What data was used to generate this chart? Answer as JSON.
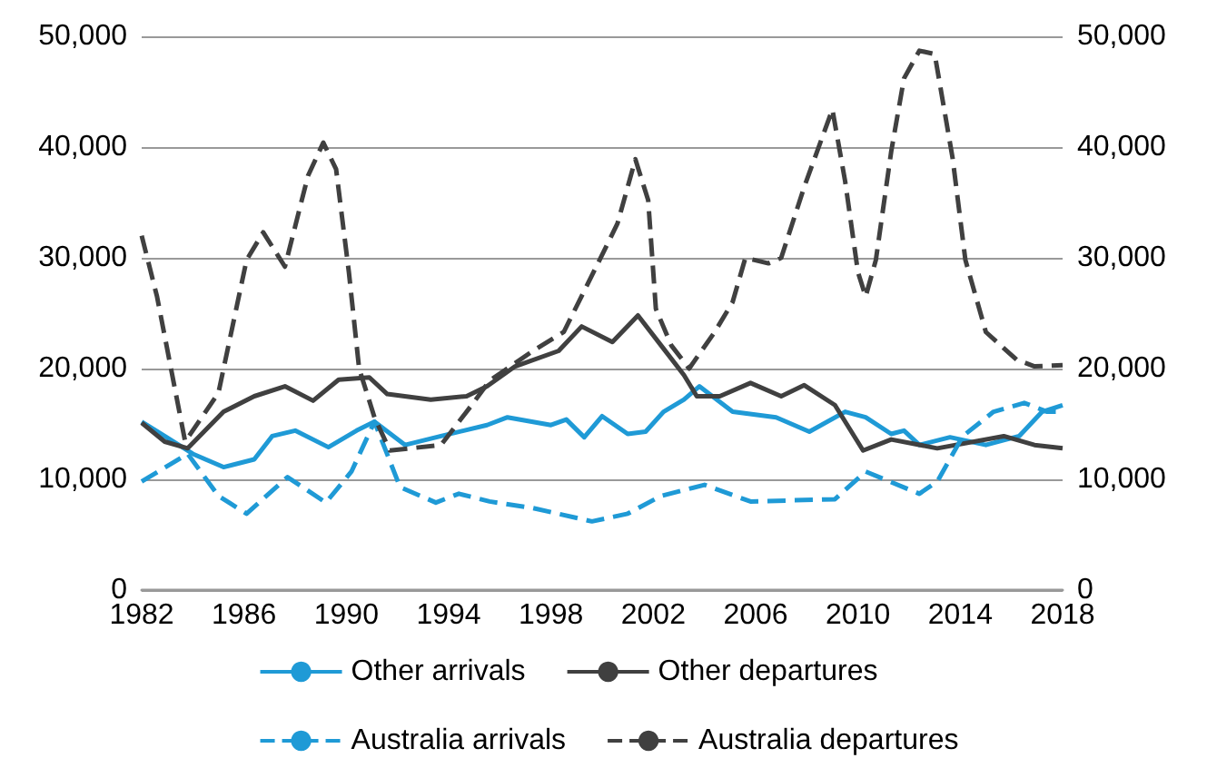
{
  "chart_data": {
    "type": "line",
    "xlim": [
      1982,
      2018
    ],
    "xticks": [
      1982,
      1986,
      1990,
      1994,
      1998,
      2002,
      2006,
      2010,
      2014,
      2018
    ],
    "ylim": [
      0,
      50000
    ],
    "yticks": [
      {
        "value": 0,
        "label": "0"
      },
      {
        "value": 10000,
        "label": "10,000"
      },
      {
        "value": 20000,
        "label": "20,000"
      },
      {
        "value": 30000,
        "label": "30,000"
      },
      {
        "value": 40000,
        "label": "40,000"
      },
      {
        "value": 50000,
        "label": "50,000"
      }
    ],
    "y2lim": [
      0,
      50000
    ],
    "y2ticks": [
      {
        "value": 0,
        "label": "0"
      },
      {
        "value": 10000,
        "label": "10,000"
      },
      {
        "value": 20000,
        "label": "20,000"
      },
      {
        "value": 30000,
        "label": "30,000"
      },
      {
        "value": 40000,
        "label": "40,000"
      },
      {
        "value": 50000,
        "label": "50,000"
      }
    ],
    "grid": "y",
    "legend": "bottom",
    "marker": "none",
    "series": [
      {
        "name": "Other arrivals",
        "color": "#1f9ad6",
        "line_style": "solid",
        "x": [
          1982,
          1982.9,
          1984.0,
          1985.2,
          1986.4,
          1987.1,
          1988.0,
          1989.3,
          1990.4,
          1991.1,
          1992.3,
          1993.7,
          1995.5,
          1996.3,
          1998.0,
          1998.6,
          1999.3,
          2000.0,
          2001.0,
          2001.7,
          2002.4,
          2003.2,
          2003.8,
          2005.1,
          2006.8,
          2008.1,
          2009.5,
          2010.3,
          2011.3,
          2011.8,
          2012.4,
          2013.6,
          2015.0,
          2016.3,
          2017.2,
          2018
        ],
        "values": [
          15200,
          13900,
          12300,
          11100,
          11800,
          13900,
          14400,
          12900,
          14400,
          15200,
          13100,
          13900,
          14900,
          15600,
          14900,
          15400,
          13800,
          15700,
          14100,
          14300,
          16100,
          17200,
          18400,
          16100,
          15600,
          14300,
          16100,
          15600,
          14100,
          14400,
          13100,
          13800,
          13100,
          13900,
          16100,
          16700
        ]
      },
      {
        "name": "Other departures",
        "color": "#404040",
        "line_style": "solid",
        "x": [
          1982,
          1982.9,
          1983.8,
          1985.2,
          1986.4,
          1987.6,
          1988.7,
          1989.7,
          1990.9,
          1991.6,
          1993.3,
          1994.7,
          1995.5,
          1996.6,
          1998.3,
          1999.2,
          2000.4,
          2001.4,
          2002.3,
          2003.2,
          2003.7,
          2004.6,
          2005.8,
          2007.0,
          2007.9,
          2009.1,
          2010.2,
          2011.3,
          2013.1,
          2015.7,
          2016.9,
          2018
        ],
        "values": [
          15100,
          13400,
          12800,
          16100,
          17500,
          18400,
          17100,
          19000,
          19200,
          17700,
          17200,
          17500,
          18400,
          20200,
          21600,
          23800,
          22400,
          24800,
          22100,
          19400,
          17500,
          17500,
          18700,
          17500,
          18500,
          16700,
          12600,
          13600,
          12800,
          13900,
          13100,
          12800
        ]
      },
      {
        "name": "Australia arrivals",
        "color": "#1f9ad6",
        "line_style": "dashed",
        "x": [
          1982,
          1983.8,
          1985.0,
          1986.1,
          1987.7,
          1989.2,
          1990.2,
          1991.1,
          1992.1,
          1993.5,
          1994.4,
          1995.6,
          1997.3,
          1999.6,
          2001.0,
          2002.3,
          2004.0,
          2005.8,
          2009.1,
          2010.3,
          2012.4,
          2013.1,
          2014.1,
          2015.3,
          2016.5,
          2017.4,
          2018
        ],
        "values": [
          9800,
          12300,
          8500,
          6900,
          10200,
          7900,
          10700,
          15200,
          9300,
          7900,
          8700,
          8000,
          7400,
          6200,
          6900,
          8500,
          9500,
          8000,
          8200,
          10700,
          8700,
          9800,
          13900,
          16100,
          16900,
          16100,
          16100
        ]
      },
      {
        "name": "Australia departures",
        "color": "#404040",
        "line_style": "dashed",
        "x": [
          1982,
          1982.6,
          1983.7,
          1985.0,
          1986.1,
          1986.75,
          1987.6,
          1988.5,
          1989.1,
          1989.6,
          1990.1,
          1990.5,
          1991.1,
          1991.7,
          1993.7,
          1994.9,
          1995.6,
          1997.3,
          1998.5,
          1999.9,
          2000.6,
          2001.3,
          2001.8,
          2002.1,
          2002.7,
          2003.4,
          2004.4,
          2005.1,
          2005.6,
          2006.5,
          2007.0,
          2007.9,
          2009.0,
          2009.5,
          2010.0,
          2010.3,
          2010.7,
          2011.3,
          2011.8,
          2012.4,
          2013.0,
          2013.7,
          2014.2,
          2015.0,
          2016.2,
          2016.9,
          2018
        ],
        "values": [
          32000,
          26500,
          13400,
          17800,
          29800,
          32300,
          29200,
          37400,
          40400,
          38000,
          28700,
          20000,
          15600,
          12600,
          13100,
          16700,
          18900,
          21600,
          23300,
          29800,
          33100,
          38900,
          35200,
          25400,
          22100,
          20000,
          23300,
          26000,
          30000,
          29500,
          30000,
          36400,
          43400,
          36900,
          28700,
          26500,
          29800,
          39600,
          46200,
          48700,
          48400,
          39000,
          29800,
          23300,
          20800,
          20200,
          20300
        ]
      }
    ]
  }
}
